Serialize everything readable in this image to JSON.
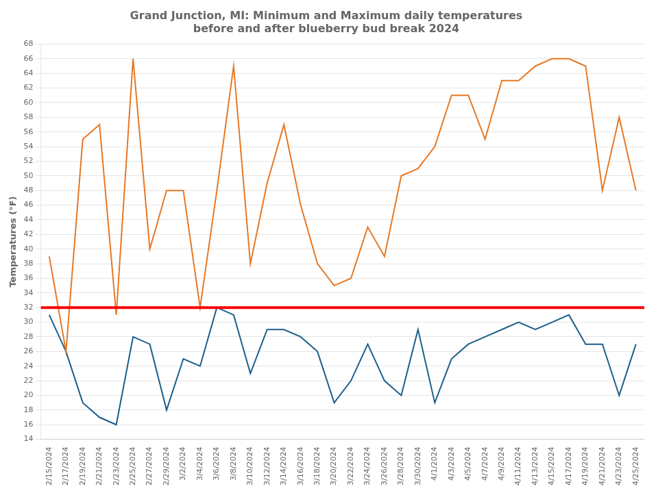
{
  "chart_data": {
    "type": "line",
    "title": "Grand Junction, MI: Minimum and Maximum daily temperatures\nbefore and after blueberry bud break 2024",
    "ylabel": "Temperatures (°F)",
    "categories": [
      "2/15/2024",
      "2/17/2024",
      "2/19/2024",
      "2/21/2024",
      "2/23/2024",
      "2/25/2024",
      "2/27/2024",
      "2/29/2024",
      "3/2/2024",
      "3/4/2024",
      "3/6/2024",
      "3/8/2024",
      "3/10/2024",
      "3/12/2024",
      "3/14/2024",
      "3/16/2024",
      "3/18/2024",
      "3/20/2024",
      "3/22/2024",
      "3/24/2024",
      "3/26/2024",
      "3/28/2024",
      "3/30/2024",
      "4/1/2024",
      "4/3/2024",
      "4/5/2024",
      "4/7/2024",
      "4/9/2024",
      "4/11/2024",
      "4/13/2024",
      "4/15/2024",
      "4/17/2024",
      "4/19/2024",
      "4/21/2024",
      "4/23/2024",
      "4/25/2024"
    ],
    "series": [
      {
        "color": "#E87722",
        "values": [
          39,
          26,
          55,
          57,
          31,
          66,
          40,
          48,
          48,
          32,
          48,
          65,
          38,
          49,
          57,
          46,
          38,
          35,
          36,
          43,
          39,
          50,
          51,
          54,
          61,
          61,
          55,
          63,
          63,
          65,
          66,
          66,
          65,
          48,
          58,
          48
        ]
      },
      {
        "color": "#1B5E8A",
        "values": [
          31,
          26,
          19,
          17,
          16,
          28,
          27,
          18,
          25,
          24,
          32,
          31,
          23,
          29,
          29,
          28,
          26,
          19,
          22,
          27,
          22,
          20,
          29,
          19,
          25,
          27,
          28,
          29,
          30,
          29,
          30,
          31,
          27,
          27,
          20,
          27
        ]
      }
    ],
    "reference_line": {
      "value": 32,
      "color": "#FF0000"
    },
    "ylim": [
      14,
      68
    ],
    "yticks": [
      14,
      16,
      18,
      20,
      22,
      24,
      26,
      28,
      30,
      32,
      34,
      36,
      38,
      40,
      42,
      44,
      46,
      48,
      50,
      52,
      54,
      56,
      58,
      60,
      62,
      64,
      66,
      68
    ],
    "grid": "y"
  }
}
